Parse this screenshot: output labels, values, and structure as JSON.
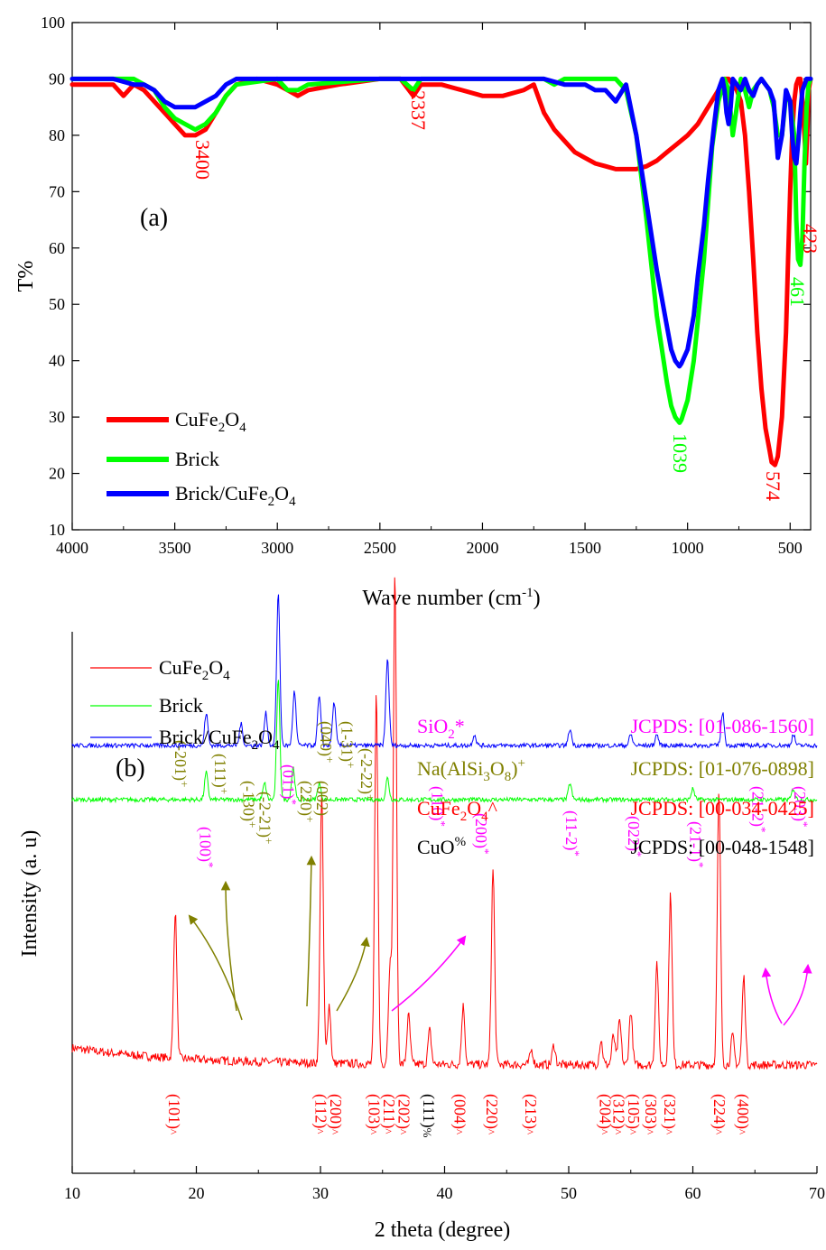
{
  "colors": {
    "cufe2o4": "#ff0000",
    "brick": "#00ff00",
    "composite": "#0000ff",
    "sio2": "#ff00ff",
    "nafeld": "#808000",
    "cuo": "#000000"
  },
  "chart_data": [
    {
      "type": "line",
      "panel_label": "(a)",
      "xlabel_main": "Wave number (cm",
      "xlabel_sup": "-1",
      "xlabel_end": ")",
      "ylabel": "T%",
      "xlim": [
        4000,
        400
      ],
      "ylim": [
        10,
        100
      ],
      "x_ticks": [
        "4000",
        "3500",
        "3000",
        "2500",
        "2000",
        "1500",
        "1000",
        "500"
      ],
      "y_ticks": [
        "10",
        "20",
        "30",
        "40",
        "50",
        "60",
        "70",
        "80",
        "90",
        "100"
      ],
      "legend": [
        {
          "base": "CuFe",
          "s1": "2",
          "mid": "O",
          "s2": "4"
        },
        {
          "base": "Brick",
          "s1": "",
          "mid": "",
          "s2": ""
        },
        {
          "base": "Brick/CuFe",
          "s1": "2",
          "mid": "O",
          "s2": "4"
        }
      ],
      "series": [
        {
          "name": "CuFe2O4",
          "x": [
            4000,
            3900,
            3800,
            3750,
            3700,
            3650,
            3600,
            3550,
            3500,
            3450,
            3400,
            3350,
            3300,
            3250,
            3200,
            3100,
            3000,
            2950,
            2900,
            2850,
            2700,
            2500,
            2400,
            2337,
            2300,
            2200,
            2100,
            2000,
            1900,
            1800,
            1750,
            1700,
            1650,
            1600,
            1550,
            1500,
            1450,
            1400,
            1350,
            1300,
            1250,
            1200,
            1150,
            1100,
            1050,
            1000,
            950,
            900,
            850,
            820,
            800,
            780,
            760,
            740,
            720,
            700,
            680,
            660,
            640,
            620,
            600,
            590,
            574,
            560,
            540,
            520,
            510,
            500,
            490,
            480,
            470,
            460,
            450,
            440,
            430,
            423,
            415,
            410,
            400
          ],
          "y": [
            89,
            89,
            89,
            87,
            89,
            88,
            86,
            84,
            82,
            80,
            80,
            81,
            84,
            87,
            89,
            90,
            89,
            88,
            87,
            88,
            89,
            90,
            90,
            87,
            89,
            89,
            88,
            87,
            87,
            88,
            89,
            84,
            81,
            79,
            77,
            76,
            75,
            74.5,
            74,
            74,
            74,
            74.5,
            75.5,
            77,
            78.5,
            80,
            82,
            85,
            88,
            90,
            90,
            89,
            88,
            86,
            80,
            70,
            58,
            45,
            35,
            28,
            24,
            22,
            21.5,
            23,
            30,
            45,
            58,
            70,
            80,
            86,
            89,
            90,
            90,
            86,
            80,
            75,
            82,
            88,
            90
          ]
        },
        {
          "name": "Brick",
          "x": [
            4000,
            3900,
            3800,
            3700,
            3650,
            3600,
            3550,
            3500,
            3450,
            3400,
            3350,
            3300,
            3250,
            3200,
            3000,
            2950,
            2900,
            2850,
            2500,
            2400,
            2337,
            2300,
            2000,
            1700,
            1650,
            1600,
            1500,
            1400,
            1350,
            1300,
            1250,
            1200,
            1150,
            1100,
            1080,
            1060,
            1050,
            1039,
            1030,
            1000,
            970,
            950,
            920,
            900,
            880,
            850,
            820,
            800,
            780,
            760,
            740,
            720,
            700,
            680,
            660,
            640,
            620,
            600,
            580,
            560,
            540,
            520,
            500,
            480,
            470,
            461,
            450,
            440,
            430,
            420,
            410,
            400
          ],
          "y": [
            90,
            90,
            90,
            90,
            89,
            88,
            85,
            83,
            82,
            81,
            82,
            84,
            87,
            89,
            90,
            88,
            88,
            89,
            90,
            90,
            88,
            90,
            90,
            90,
            89,
            90,
            90,
            90,
            90,
            88,
            80,
            65,
            48,
            36,
            32,
            30,
            29.5,
            29,
            29.5,
            33,
            40,
            47,
            58,
            68,
            78,
            86,
            90,
            88,
            80,
            85,
            90,
            88,
            85,
            88,
            89,
            90,
            89,
            88,
            85,
            80,
            80,
            87,
            86,
            80,
            65,
            58,
            57,
            62,
            75,
            85,
            89,
            90
          ]
        },
        {
          "name": "Brick/CuFe2O4",
          "x": [
            4000,
            3900,
            3800,
            3700,
            3650,
            3600,
            3550,
            3500,
            3450,
            3400,
            3350,
            3300,
            3250,
            3200,
            3000,
            2900,
            2500,
            2000,
            1700,
            1600,
            1500,
            1450,
            1400,
            1350,
            1300,
            1250,
            1200,
            1150,
            1100,
            1080,
            1060,
            1050,
            1040,
            1030,
            1000,
            970,
            950,
            920,
            900,
            870,
            850,
            830,
            820,
            810,
            800,
            790,
            780,
            760,
            740,
            720,
            700,
            680,
            660,
            640,
            620,
            600,
            580,
            560,
            540,
            520,
            500,
            490,
            480,
            470,
            460,
            450,
            440,
            430,
            420,
            410,
            400
          ],
          "y": [
            90,
            90,
            90,
            89,
            89,
            88,
            86,
            85,
            85,
            85,
            86,
            87,
            89,
            90,
            90,
            90,
            90,
            90,
            90,
            89,
            89,
            88,
            88,
            86,
            89,
            80,
            68,
            56,
            46,
            42,
            40,
            39.5,
            39,
            39.5,
            42,
            48,
            55,
            64,
            72,
            82,
            88,
            90,
            88,
            84,
            82,
            85,
            90,
            89,
            88,
            90,
            88,
            87,
            89,
            90,
            89,
            88,
            86,
            76,
            80,
            88,
            86,
            80,
            76,
            75,
            79,
            84,
            88,
            89,
            90,
            90,
            90
          ]
        }
      ],
      "annotations": [
        "3400",
        "2337",
        "423",
        "461",
        "1039",
        "574"
      ]
    },
    {
      "type": "line",
      "panel_label": "(b)",
      "xlabel": "2 theta (degree)",
      "ylabel": "Intensity (a. u)",
      "xlim": [
        10,
        70
      ],
      "x_ticks": [
        "10",
        "20",
        "30",
        "40",
        "50",
        "60",
        "70"
      ],
      "legend": [
        {
          "base": "CuFe",
          "s1": "2",
          "mid": "O",
          "s2": "4"
        },
        {
          "base": "Brick",
          "s1": "",
          "mid": "",
          "s2": ""
        },
        {
          "base": "Brick/CuFe",
          "s1": "2",
          "mid": "O",
          "s2": "4"
        }
      ],
      "series": [
        {
          "name": "CuFe2O4",
          "baseline": 0.2,
          "peaks": [
            [
              18.3,
              0.3
            ],
            [
              30.1,
              0.55
            ],
            [
              30.7,
              0.12
            ],
            [
              34.5,
              0.76
            ],
            [
              35.6,
              0.2
            ],
            [
              36.0,
              1.0
            ],
            [
              37.1,
              0.1
            ],
            [
              38.8,
              0.07
            ],
            [
              41.5,
              0.12
            ],
            [
              43.9,
              0.4
            ],
            [
              47.0,
              0.03
            ],
            [
              48.8,
              0.04
            ],
            [
              52.6,
              0.05
            ],
            [
              53.6,
              0.06
            ],
            [
              54.1,
              0.09
            ],
            [
              55.0,
              0.11
            ],
            [
              57.1,
              0.21
            ],
            [
              58.2,
              0.35
            ],
            [
              62.1,
              0.56
            ],
            [
              63.2,
              0.06
            ],
            [
              64.1,
              0.18
            ]
          ]
        },
        {
          "name": "Brick",
          "baseline": 0.69,
          "peaks": [
            [
              20.8,
              0.05
            ],
            [
              25.5,
              0.03
            ],
            [
              26.6,
              0.22
            ],
            [
              27.8,
              0.06
            ],
            [
              29.9,
              0.03
            ],
            [
              35.4,
              0.04
            ],
            [
              50.1,
              0.03
            ],
            [
              60.0,
              0.02
            ],
            [
              68.1,
              0.02
            ]
          ]
        },
        {
          "name": "Brick/CuFe2O4",
          "baseline": 0.79,
          "peaks": [
            [
              20.8,
              0.06
            ],
            [
              23.6,
              0.04
            ],
            [
              25.6,
              0.06
            ],
            [
              26.6,
              0.28
            ],
            [
              27.9,
              0.1
            ],
            [
              29.9,
              0.09
            ],
            [
              31.1,
              0.08
            ],
            [
              35.4,
              0.16
            ],
            [
              42.4,
              0.02
            ],
            [
              50.1,
              0.03
            ],
            [
              55.0,
              0.02
            ],
            [
              57.1,
              0.02
            ],
            [
              62.4,
              0.06
            ],
            [
              68.1,
              0.02
            ]
          ]
        }
      ],
      "phases": [
        {
          "base": "SiO",
          "sub": "2",
          "rest": "",
          "sup": "*",
          "jcpds": "JCPDS: [01-086-1560]",
          "color": "#ff00ff"
        },
        {
          "base": "Na(AlSi",
          "sub": "3",
          "rest": "O",
          "sub2": "8",
          "close": ")",
          "sup": "+",
          "jcpds": "JCPDS: [01-076-0898]",
          "color": "#808000"
        },
        {
          "base": "CuFe",
          "sub": "2",
          "rest": "O",
          "sub2": "4",
          "close": "",
          "sup": "^",
          "jcpds": "JCPDS: [00-034-0425]",
          "color": "#ff0000"
        },
        {
          "base": "CuO",
          "sub": "",
          "rest": "",
          "sup": "%",
          "jcpds": "JCPDS: [00-048-1548]",
          "color": "#000000"
        }
      ],
      "peak_labels_bottom": [
        {
          "hkl": "(101)",
          "mark": "^",
          "x": 18.3,
          "color": "#ff0000"
        },
        {
          "hkl": "(112)",
          "mark": "^",
          "x": 30.1,
          "color": "#ff0000"
        },
        {
          "hkl": "(200)",
          "mark": "^",
          "x": 31.3,
          "color": "#ff0000"
        },
        {
          "hkl": "(103)",
          "mark": "^",
          "x": 34.4,
          "color": "#ff0000"
        },
        {
          "hkl": "(211)",
          "mark": "^",
          "x": 35.6,
          "color": "#ff0000"
        },
        {
          "hkl": "(202)",
          "mark": "^",
          "x": 36.8,
          "color": "#ff0000"
        },
        {
          "hkl": "(111)",
          "mark": "%",
          "x": 38.8,
          "color": "#000000"
        },
        {
          "hkl": "(004)",
          "mark": "^",
          "x": 41.3,
          "color": "#ff0000"
        },
        {
          "hkl": "(220)",
          "mark": "^",
          "x": 43.9,
          "color": "#ff0000"
        },
        {
          "hkl": "(213)",
          "mark": "^",
          "x": 47.0,
          "color": "#ff0000"
        },
        {
          "hkl": "(204)",
          "mark": "^",
          "x": 53.0,
          "color": "#ff0000"
        },
        {
          "hkl": "(312)",
          "mark": "^",
          "x": 54.1,
          "color": "#ff0000"
        },
        {
          "hkl": "(105)",
          "mark": "^",
          "x": 55.3,
          "color": "#ff0000"
        },
        {
          "hkl": "(303)",
          "mark": "^",
          "x": 56.7,
          "color": "#ff0000"
        },
        {
          "hkl": "(321)",
          "mark": "^",
          "x": 58.2,
          "color": "#ff0000"
        },
        {
          "hkl": "(224)",
          "mark": "^",
          "x": 62.2,
          "color": "#ff0000"
        },
        {
          "hkl": "(400)",
          "mark": "^",
          "x": 64.1,
          "color": "#ff0000"
        }
      ],
      "peak_labels_top": [
        {
          "hkl": "(100)",
          "mark": "*",
          "x": 20.8,
          "level": 0.72,
          "color": "#ff00ff"
        },
        {
          "hkl": "(-201)",
          "mark": "+",
          "x": 18.8,
          "level": 0.4,
          "color": "#808000"
        },
        {
          "hkl": "(111)",
          "mark": "+",
          "x": 22.0,
          "level": 0.45,
          "color": "#808000"
        },
        {
          "hkl": "(-130)",
          "mark": "+",
          "x": 24.3,
          "level": 0.55,
          "color": "#808000"
        },
        {
          "hkl": "(-2-21)",
          "mark": "+",
          "x": 25.6,
          "level": 0.59,
          "color": "#808000"
        },
        {
          "hkl": "(011)",
          "mark": "*",
          "x": 27.5,
          "level": 0.49,
          "color": "#ff00ff"
        },
        {
          "hkl": "(220)",
          "mark": "+",
          "x": 28.9,
          "level": 0.55,
          "color": "#808000"
        },
        {
          "hkl": "(002)",
          "mark": "",
          "x": 30.2,
          "level": 0.55,
          "color": "#808000"
        },
        {
          "hkl": "(040)",
          "mark": "+",
          "x": 30.5,
          "level": 0.33,
          "color": "#808000"
        },
        {
          "hkl": "(1-31)",
          "mark": "+",
          "x": 32.2,
          "level": 0.33,
          "color": "#808000"
        },
        {
          "hkl": "(-2-22)",
          "mark": "+",
          "x": 33.8,
          "level": 0.43,
          "color": "#808000"
        },
        {
          "hkl": "(110)",
          "mark": "*",
          "x": 39.5,
          "level": 0.57,
          "color": "#ff00ff"
        },
        {
          "hkl": "(200)",
          "mark": "*",
          "x": 43.0,
          "level": 0.67,
          "color": "#ff00ff"
        },
        {
          "hkl": "(11-2)",
          "mark": "*",
          "x": 50.3,
          "level": 0.66,
          "color": "#ff00ff"
        },
        {
          "hkl": "(022)",
          "mark": "*",
          "x": 55.3,
          "level": 0.68,
          "color": "#ff00ff"
        },
        {
          "hkl": "(21-1)",
          "mark": "*",
          "x": 60.3,
          "level": 0.7,
          "color": "#ff00ff"
        },
        {
          "hkl": "(21-2)",
          "mark": "*",
          "x": 65.3,
          "level": 0.57,
          "color": "#ff00ff"
        },
        {
          "hkl": "(203)",
          "mark": "*",
          "x": 68.7,
          "level": 0.57,
          "color": "#ff00ff"
        }
      ]
    }
  ]
}
